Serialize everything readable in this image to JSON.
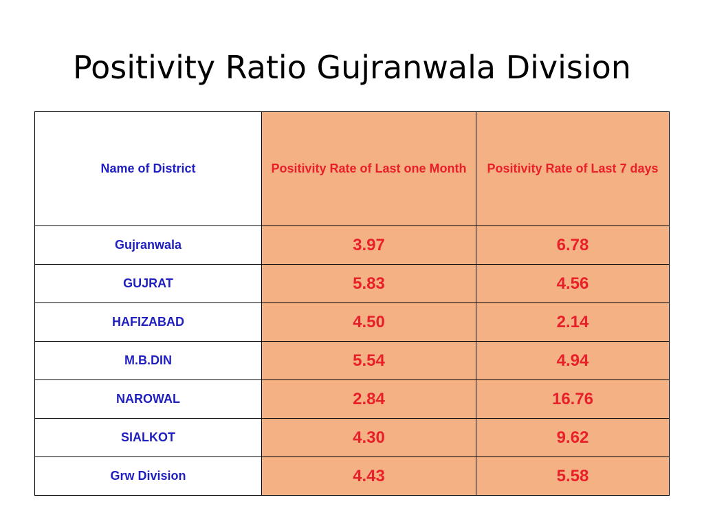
{
  "title": "Positivity Ratio Gujranwala Division",
  "table": {
    "headers": {
      "district": "Name of District",
      "month": "Positivity Rate of Last one Month",
      "week": "Positivity Rate of Last 7 days"
    },
    "rows": [
      {
        "district": "Gujranwala",
        "month": "3.97",
        "week": "6.78"
      },
      {
        "district": "GUJRAT",
        "month": "5.83",
        "week": "4.56"
      },
      {
        "district": "HAFIZABAD",
        "month": "4.50",
        "week": "2.14"
      },
      {
        "district": "M.B.DIN",
        "month": "5.54",
        "week": "4.94"
      },
      {
        "district": "NAROWAL",
        "month": "2.84",
        "week": "16.76"
      },
      {
        "district": "SIALKOT",
        "month": "4.30",
        "week": "9.62"
      },
      {
        "district": "Grw Division",
        "month": "4.43",
        "week": "5.58"
      }
    ]
  },
  "colors": {
    "rate_fill": "#f4b183",
    "district_text": "#1f1fbf",
    "rate_text": "#e8202a"
  }
}
